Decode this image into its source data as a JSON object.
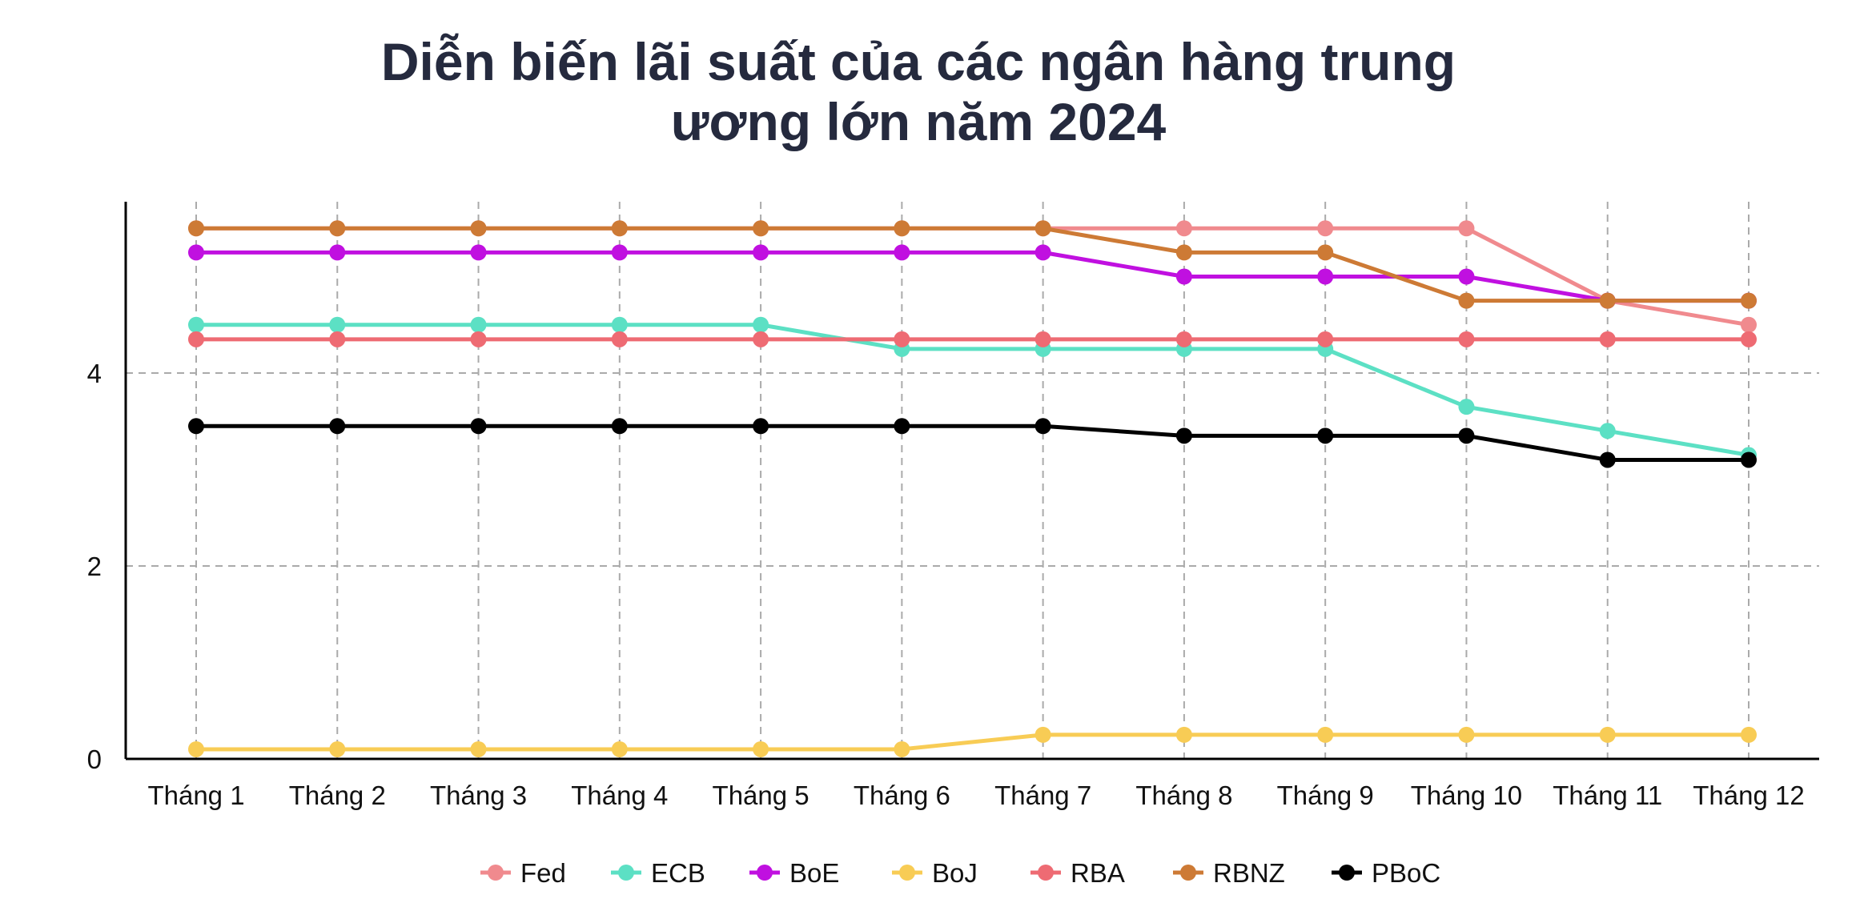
{
  "chart_data": {
    "type": "line",
    "title": [
      "Diễn biến lãi suất của các ngân hàng trung",
      "ương lớn năm 2024"
    ],
    "xlabel": "",
    "ylabel": "",
    "categories": [
      "Tháng 1",
      "Tháng 2",
      "Tháng 3",
      "Tháng 4",
      "Tháng 5",
      "Tháng 6",
      "Tháng 7",
      "Tháng 8",
      "Tháng 9",
      "Tháng 10",
      "Tháng 11",
      "Tháng 12"
    ],
    "yticks": [
      0,
      2,
      4
    ],
    "ylim": [
      0,
      5.75
    ],
    "grid": true,
    "legend_position": "bottom",
    "series": [
      {
        "name": "Fed",
        "color": "#F08A8E",
        "values": [
          5.5,
          5.5,
          5.5,
          5.5,
          5.5,
          5.5,
          5.5,
          5.5,
          5.5,
          5.5,
          4.75,
          4.5
        ]
      },
      {
        "name": "ECB",
        "color": "#5CE0C4",
        "values": [
          4.5,
          4.5,
          4.5,
          4.5,
          4.5,
          4.25,
          4.25,
          4.25,
          4.25,
          3.65,
          3.4,
          3.15
        ]
      },
      {
        "name": "BoE",
        "color": "#C010E0",
        "values": [
          5.25,
          5.25,
          5.25,
          5.25,
          5.25,
          5.25,
          5.25,
          5.0,
          5.0,
          5.0,
          4.75,
          4.75
        ]
      },
      {
        "name": "BoJ",
        "color": "#F8CC55",
        "values": [
          0.1,
          0.1,
          0.1,
          0.1,
          0.1,
          0.1,
          0.25,
          0.25,
          0.25,
          0.25,
          0.25,
          0.25
        ]
      },
      {
        "name": "RBA",
        "color": "#EE6B73",
        "values": [
          4.35,
          4.35,
          4.35,
          4.35,
          4.35,
          4.35,
          4.35,
          4.35,
          4.35,
          4.35,
          4.35,
          4.35
        ]
      },
      {
        "name": "RBNZ",
        "color": "#CD7A35",
        "values": [
          5.5,
          5.5,
          5.5,
          5.5,
          5.5,
          5.5,
          5.5,
          5.25,
          5.25,
          4.75,
          4.75,
          4.75
        ]
      },
      {
        "name": "PBoC",
        "color": "#000000",
        "values": [
          3.45,
          3.45,
          3.45,
          3.45,
          3.45,
          3.45,
          3.45,
          3.35,
          3.35,
          3.35,
          3.1,
          3.1
        ]
      }
    ]
  }
}
